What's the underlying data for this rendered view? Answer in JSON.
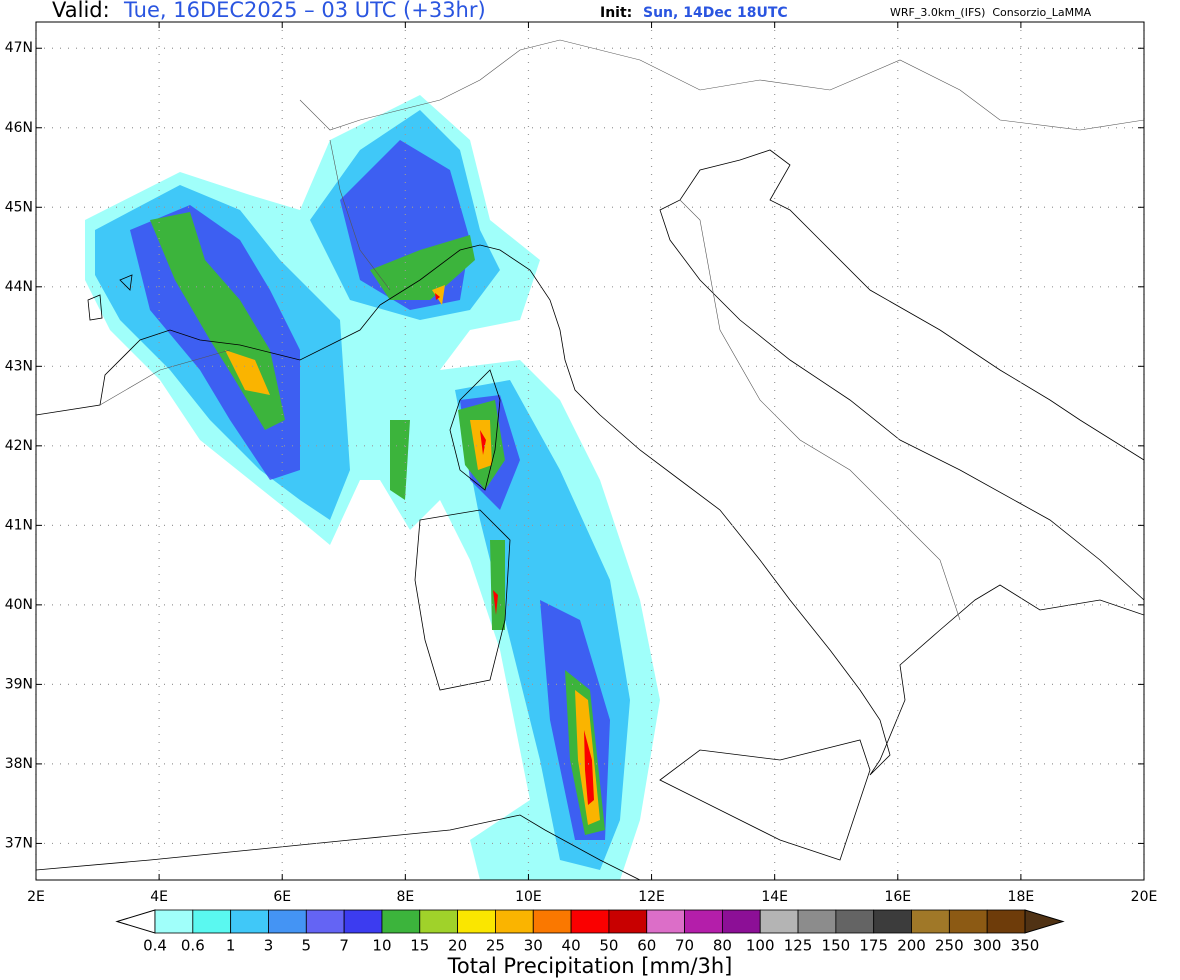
{
  "header": {
    "valid_label": "Valid:",
    "valid_time": "Tue, 16DEC2025 – 03 UTC (+33hr)",
    "init_label": "Init:",
    "init_time": "Sun, 14Dec 18UTC",
    "model": "WRF_3.0km_(IFS)  Consorzio_LaMMA"
  },
  "map": {
    "lon_range": [
      2,
      20
    ],
    "lat_range": [
      36.54,
      47.33
    ],
    "lon_ticks": [
      {
        "value": 2,
        "label": "2E"
      },
      {
        "value": 4,
        "label": "4E"
      },
      {
        "value": 6,
        "label": "6E"
      },
      {
        "value": 8,
        "label": "8E"
      },
      {
        "value": 10,
        "label": "10E"
      },
      {
        "value": 12,
        "label": "12E"
      },
      {
        "value": 14,
        "label": "14E"
      },
      {
        "value": 16,
        "label": "16E"
      },
      {
        "value": 18,
        "label": "18E"
      },
      {
        "value": 20,
        "label": "20E"
      }
    ],
    "lat_ticks": [
      {
        "value": 37,
        "label": "37N"
      },
      {
        "value": 38,
        "label": "38N"
      },
      {
        "value": 39,
        "label": "39N"
      },
      {
        "value": 40,
        "label": "40N"
      },
      {
        "value": 41,
        "label": "41N"
      },
      {
        "value": 42,
        "label": "42N"
      },
      {
        "value": 43,
        "label": "43N"
      },
      {
        "value": 44,
        "label": "44N"
      },
      {
        "value": 45,
        "label": "45N"
      },
      {
        "value": 46,
        "label": "46N"
      },
      {
        "value": 47,
        "label": "47N"
      }
    ]
  },
  "colorbar": {
    "title": "Total Precipitation [mm/3h]",
    "levels": [
      0.4,
      0.6,
      1,
      3,
      5,
      7,
      10,
      15,
      20,
      25,
      30,
      40,
      50,
      60,
      70,
      80,
      100,
      125,
      150,
      175,
      200,
      250,
      300,
      350
    ],
    "colors": [
      "#a0fffa",
      "#5af8f0",
      "#40c8f8",
      "#4494f4",
      "#6464f4",
      "#3c3cf0",
      "#3cb43c",
      "#a0d22a",
      "#fae600",
      "#fab400",
      "#fa7800",
      "#fa0000",
      "#c80000",
      "#dc6ec8",
      "#b41eaa",
      "#8c0f96",
      "#b4b4b4",
      "#8c8c8c",
      "#646464",
      "#3c3c3c",
      "#a07828",
      "#8c5a14",
      "#6e3c0a"
    ],
    "under_color": "#ffffff",
    "over_color": "#503214"
  }
}
